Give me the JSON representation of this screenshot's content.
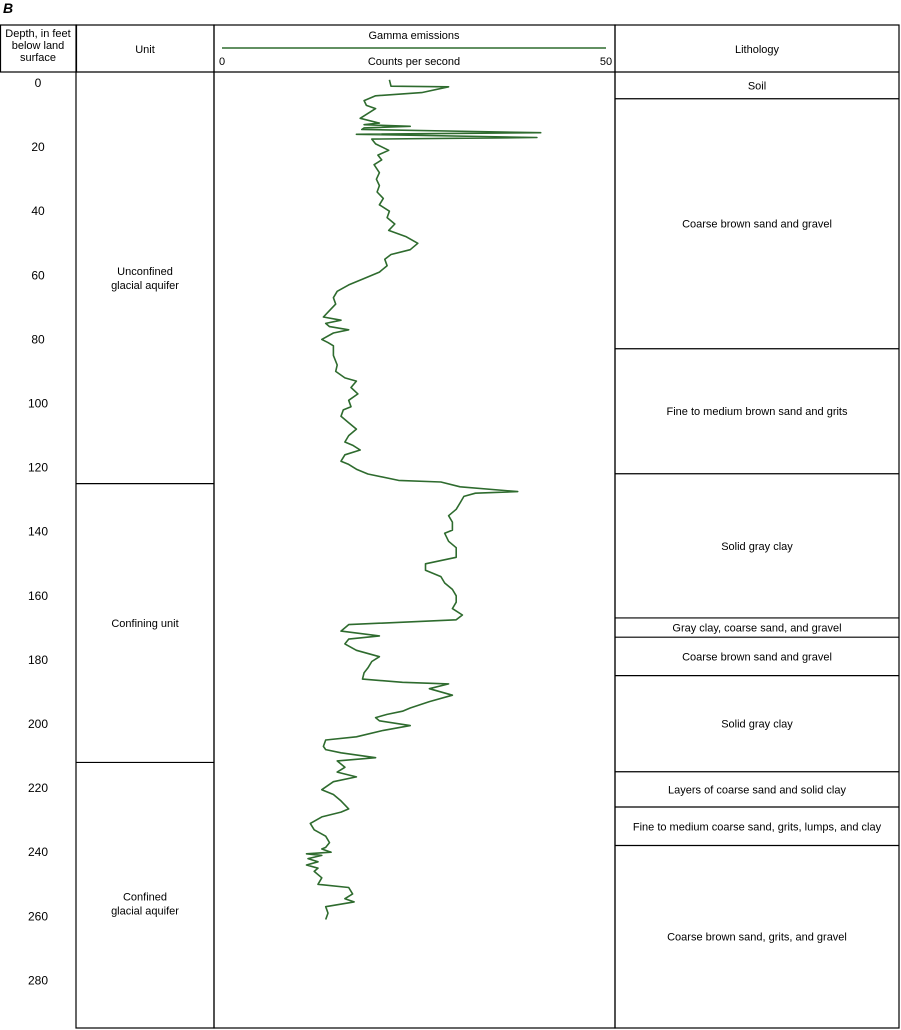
{
  "figure": {
    "panel_label": "B"
  },
  "columns": {
    "depth_header": [
      "Depth, in feet",
      "below land",
      "surface"
    ],
    "unit_header": "Unit",
    "lithology_header": "Lithology"
  },
  "units": [
    {
      "name_lines": [
        "Unconfined",
        "glacial aquifer"
      ],
      "top": 0,
      "bottom": 125
    },
    {
      "name_lines": [
        "Confining unit"
      ],
      "top": 125,
      "bottom": 212
    },
    {
      "name_lines": [
        "Confined",
        "glacial aquifer"
      ],
      "top": 212,
      "bottom": 296
    }
  ],
  "lithology": [
    {
      "label": "Soil",
      "top": 0,
      "bottom": 6
    },
    {
      "label": "Coarse brown sand and gravel",
      "top": 6,
      "bottom": 84
    },
    {
      "label": "Fine to medium brown sand and grits",
      "top": 84,
      "bottom": 123
    },
    {
      "label": "Solid gray clay",
      "top": 123,
      "bottom": 168
    },
    {
      "label": "Gray clay, coarse sand, and gravel",
      "top": 168,
      "bottom": 174
    },
    {
      "label": "Coarse brown sand and gravel",
      "top": 174,
      "bottom": 186
    },
    {
      "label": "Solid gray clay",
      "top": 186,
      "bottom": 216
    },
    {
      "label": "Layers of coarse sand and solid clay",
      "top": 216,
      "bottom": 227
    },
    {
      "label": "Fine to medium coarse sand, grits, lumps, and clay",
      "top": 227,
      "bottom": 239
    },
    {
      "label": "Coarse brown sand, grits, and gravel",
      "top": 239,
      "bottom": 296
    }
  ],
  "chart_data": {
    "type": "line",
    "title": "Gamma emissions",
    "xlabel": "Counts per second",
    "ylabel": "Depth, in feet below land surface",
    "xlim": [
      0,
      50
    ],
    "ylim": [
      0,
      296
    ],
    "y_inverted": true,
    "x_tick_labels": [
      "0",
      "50"
    ],
    "y_ticks": [
      0,
      20,
      40,
      60,
      80,
      100,
      120,
      140,
      160,
      180,
      200,
      220,
      240,
      260,
      280
    ],
    "line_color": "#2e6b2e",
    "series": [
      {
        "points": [
          [
            21.8,
            -1
          ],
          [
            22,
            1
          ],
          [
            29.5,
            1.2
          ],
          [
            26,
            3
          ],
          [
            20,
            4
          ],
          [
            18.5,
            5.5
          ],
          [
            18.8,
            7
          ],
          [
            20,
            8
          ],
          [
            19,
            9.5
          ],
          [
            18,
            11
          ],
          [
            20.5,
            12.5
          ],
          [
            18.5,
            13
          ],
          [
            24.5,
            13.5
          ],
          [
            18.5,
            14
          ],
          [
            18.2,
            14.5
          ],
          [
            41.5,
            15.5
          ],
          [
            17.5,
            16
          ],
          [
            41,
            17
          ],
          [
            19.5,
            17.5
          ],
          [
            20,
            19
          ],
          [
            21.7,
            21
          ],
          [
            20.3,
            22.5
          ],
          [
            20.8,
            24
          ],
          [
            19.8,
            25.5
          ],
          [
            20.5,
            28
          ],
          [
            20.1,
            30
          ],
          [
            20.5,
            32
          ],
          [
            20.2,
            34
          ],
          [
            21,
            36
          ],
          [
            20.5,
            38
          ],
          [
            21.8,
            40
          ],
          [
            21.5,
            42
          ],
          [
            22.5,
            44
          ],
          [
            21.7,
            46
          ],
          [
            24,
            48
          ],
          [
            25.5,
            50
          ],
          [
            24.5,
            52
          ],
          [
            22,
            53.5
          ],
          [
            21.2,
            55
          ],
          [
            21.5,
            57
          ],
          [
            20.5,
            59
          ],
          [
            18.5,
            61
          ],
          [
            16.5,
            63
          ],
          [
            15,
            65
          ],
          [
            14.5,
            67
          ],
          [
            14.8,
            69
          ],
          [
            14,
            71
          ],
          [
            13.2,
            73
          ],
          [
            15.5,
            74
          ],
          [
            13.5,
            75
          ],
          [
            14,
            76
          ],
          [
            16.5,
            77
          ],
          [
            14.5,
            78
          ],
          [
            13,
            80
          ],
          [
            13.8,
            81
          ],
          [
            14.5,
            82
          ],
          [
            14.5,
            85
          ],
          [
            15,
            88
          ],
          [
            14.8,
            90
          ],
          [
            16,
            92
          ],
          [
            17.5,
            93
          ],
          [
            16.8,
            95
          ],
          [
            17.7,
            97
          ],
          [
            16.5,
            99
          ],
          [
            16.8,
            101
          ],
          [
            15.8,
            102
          ],
          [
            15.5,
            104
          ],
          [
            16.5,
            106
          ],
          [
            17.5,
            108
          ],
          [
            16.5,
            110
          ],
          [
            16,
            112
          ],
          [
            17,
            113
          ],
          [
            18,
            114.5
          ],
          [
            16,
            116
          ],
          [
            15.5,
            118
          ],
          [
            16.5,
            119
          ],
          [
            17.5,
            120.5
          ],
          [
            19,
            122
          ],
          [
            23,
            124
          ],
          [
            28.5,
            124.5
          ],
          [
            31,
            126
          ],
          [
            38.5,
            127.5
          ],
          [
            33,
            128
          ],
          [
            31.5,
            129
          ],
          [
            31,
            131
          ],
          [
            30.5,
            133
          ],
          [
            29.5,
            135
          ],
          [
            30,
            137
          ],
          [
            30,
            139.5
          ],
          [
            29,
            140.5
          ],
          [
            29.5,
            143
          ],
          [
            30.5,
            145
          ],
          [
            30.5,
            148
          ],
          [
            26.5,
            150
          ],
          [
            26.5,
            152
          ],
          [
            28.5,
            154
          ],
          [
            29,
            156
          ],
          [
            30,
            158
          ],
          [
            30.5,
            160
          ],
          [
            30.5,
            162
          ],
          [
            30,
            164
          ],
          [
            31.3,
            166
          ],
          [
            30.5,
            167.5
          ],
          [
            16.5,
            169
          ],
          [
            15.5,
            171
          ],
          [
            20.5,
            172.5
          ],
          [
            16.5,
            173.5
          ],
          [
            16,
            175
          ],
          [
            17.5,
            177
          ],
          [
            20.5,
            179
          ],
          [
            19.5,
            180.5
          ],
          [
            19,
            182.5
          ],
          [
            18.5,
            184
          ],
          [
            18.3,
            186
          ],
          [
            23.5,
            187
          ],
          [
            29.5,
            187.5
          ],
          [
            27,
            189
          ],
          [
            30,
            191
          ],
          [
            27,
            193
          ],
          [
            24.5,
            195
          ],
          [
            23.5,
            196
          ],
          [
            21.5,
            197
          ],
          [
            20,
            198
          ],
          [
            20.5,
            199
          ],
          [
            24.5,
            200.5
          ],
          [
            21,
            202
          ],
          [
            17.5,
            204
          ],
          [
            13.5,
            205
          ],
          [
            13.2,
            207
          ],
          [
            13.5,
            208
          ],
          [
            15.5,
            209
          ],
          [
            20,
            210.5
          ],
          [
            15,
            211.5
          ],
          [
            16,
            213.5
          ],
          [
            15,
            215
          ],
          [
            17.5,
            216.5
          ],
          [
            14.5,
            218
          ],
          [
            13,
            220.5
          ],
          [
            14.5,
            222
          ],
          [
            15.5,
            224
          ],
          [
            16.5,
            226.5
          ],
          [
            15.5,
            227.5
          ],
          [
            13,
            229
          ],
          [
            11.5,
            231
          ],
          [
            12,
            233
          ],
          [
            13.5,
            235
          ],
          [
            14,
            237
          ],
          [
            13.5,
            238.5
          ],
          [
            13,
            239
          ],
          [
            14.2,
            240
          ],
          [
            11,
            240.5
          ],
          [
            13,
            241
          ],
          [
            11.2,
            242
          ],
          [
            12.5,
            243
          ],
          [
            11,
            244
          ],
          [
            12.5,
            245
          ],
          [
            12,
            246
          ],
          [
            13,
            248
          ],
          [
            12.5,
            250
          ],
          [
            16.5,
            251
          ],
          [
            17,
            253
          ],
          [
            16,
            254.5
          ],
          [
            17.2,
            255.5
          ],
          [
            13.5,
            257
          ],
          [
            13.8,
            259
          ],
          [
            13.5,
            261
          ]
        ]
      }
    ]
  }
}
